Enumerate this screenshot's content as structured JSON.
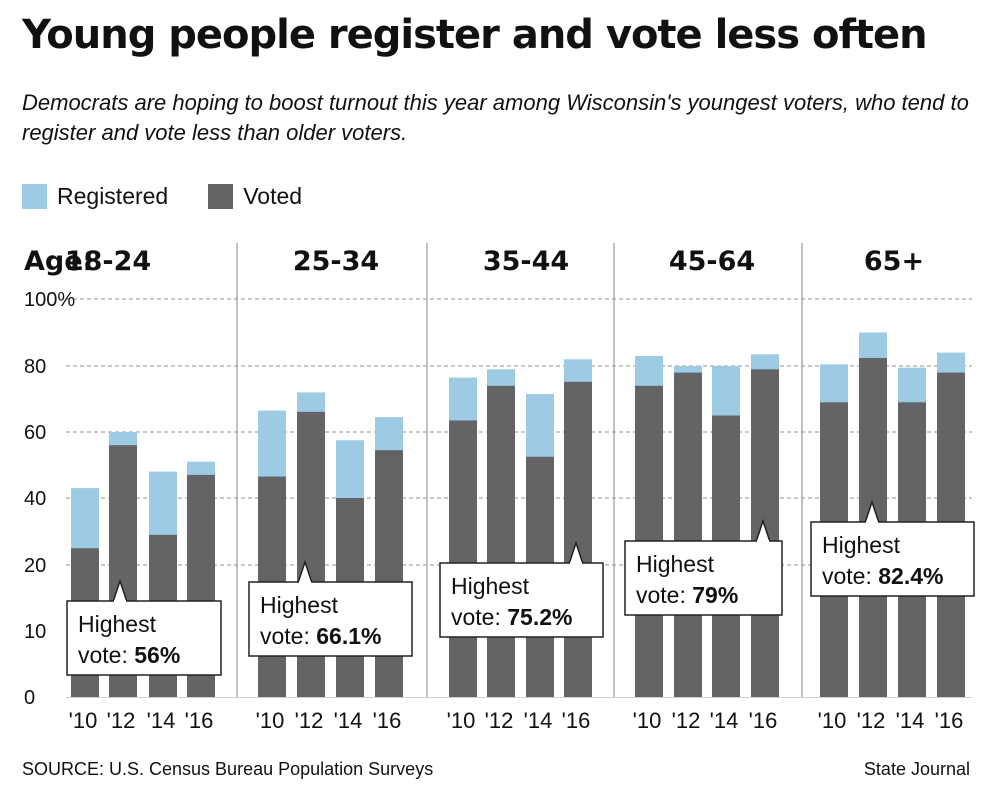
{
  "title": "Young people register and vote less often",
  "subtitle": "Democrats are hoping to boost turnout this year among Wisconsin's youngest voters, who tend to register and vote less than older voters.",
  "legend": {
    "registered": "Registered",
    "voted": "Voted"
  },
  "colors": {
    "registered": "#9ccbe3",
    "voted": "#646466",
    "grid": "#a8a8a8",
    "divider": "#9a9a9a"
  },
  "age_prefix": "Age:",
  "source": "SOURCE: U.S. Census Bureau Population Surveys",
  "credit": "State Journal",
  "chart_data": {
    "type": "bar",
    "stacked": "overlay",
    "title": "Young people register and vote less often",
    "y_ticks": [
      "100%",
      "80",
      "60",
      "40",
      "20",
      "10",
      "0"
    ],
    "ylim": [
      0,
      100
    ],
    "grid": true,
    "year_labels": [
      "'10",
      "'12",
      "'14",
      "'16"
    ],
    "groups": [
      {
        "age": "18-24",
        "registered": [
          43,
          60,
          48,
          51
        ],
        "voted": [
          25,
          56,
          29,
          47
        ],
        "callout": {
          "label": "Highest",
          "prefix": "vote: ",
          "value": "56%"
        }
      },
      {
        "age": "25-34",
        "registered": [
          66.5,
          72,
          57.5,
          64.5
        ],
        "voted": [
          46.5,
          66.1,
          40,
          54.5
        ],
        "callout": {
          "label": "Highest",
          "prefix": "vote: ",
          "value": "66.1%"
        }
      },
      {
        "age": "35-44",
        "registered": [
          76.5,
          79,
          71.5,
          82
        ],
        "voted": [
          63.5,
          74,
          52.5,
          75.2
        ],
        "callout": {
          "label": "Highest",
          "prefix": "vote: ",
          "value": "75.2%"
        }
      },
      {
        "age": "45-64",
        "registered": [
          83,
          80,
          80,
          83.5
        ],
        "voted": [
          74,
          78,
          65,
          79
        ],
        "callout": {
          "label": "Highest",
          "prefix": "vote: ",
          "value": "79%"
        }
      },
      {
        "age": "65+",
        "registered": [
          80.5,
          90,
          79.5,
          84
        ],
        "voted": [
          69,
          82.4,
          69,
          78
        ],
        "callout": {
          "label": "Highest",
          "prefix": "vote: ",
          "value": "82.4%"
        }
      }
    ]
  }
}
